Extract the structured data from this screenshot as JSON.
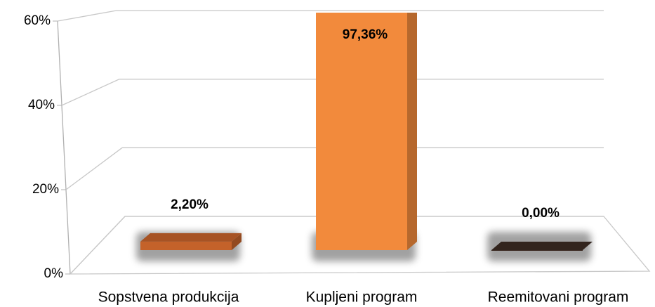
{
  "chart_data": {
    "type": "bar3d",
    "categories": [
      "Sopstvena produkcija",
      "Kupljeni program",
      "Reemitovani program"
    ],
    "values": [
      2.2,
      97.36,
      0.0
    ],
    "value_labels": [
      "2,20%",
      "97,36%",
      "0,00%"
    ],
    "colors": [
      "#c4622a",
      "#f28a3c",
      "#3b2a22"
    ],
    "ylim": [
      0,
      60
    ],
    "yticks": [
      {
        "value": 0,
        "label": "0%"
      },
      {
        "value": 20,
        "label": "20%"
      },
      {
        "value": 40,
        "label": "40%"
      },
      {
        "value": 60,
        "label": "60%"
      }
    ],
    "grid": true
  }
}
